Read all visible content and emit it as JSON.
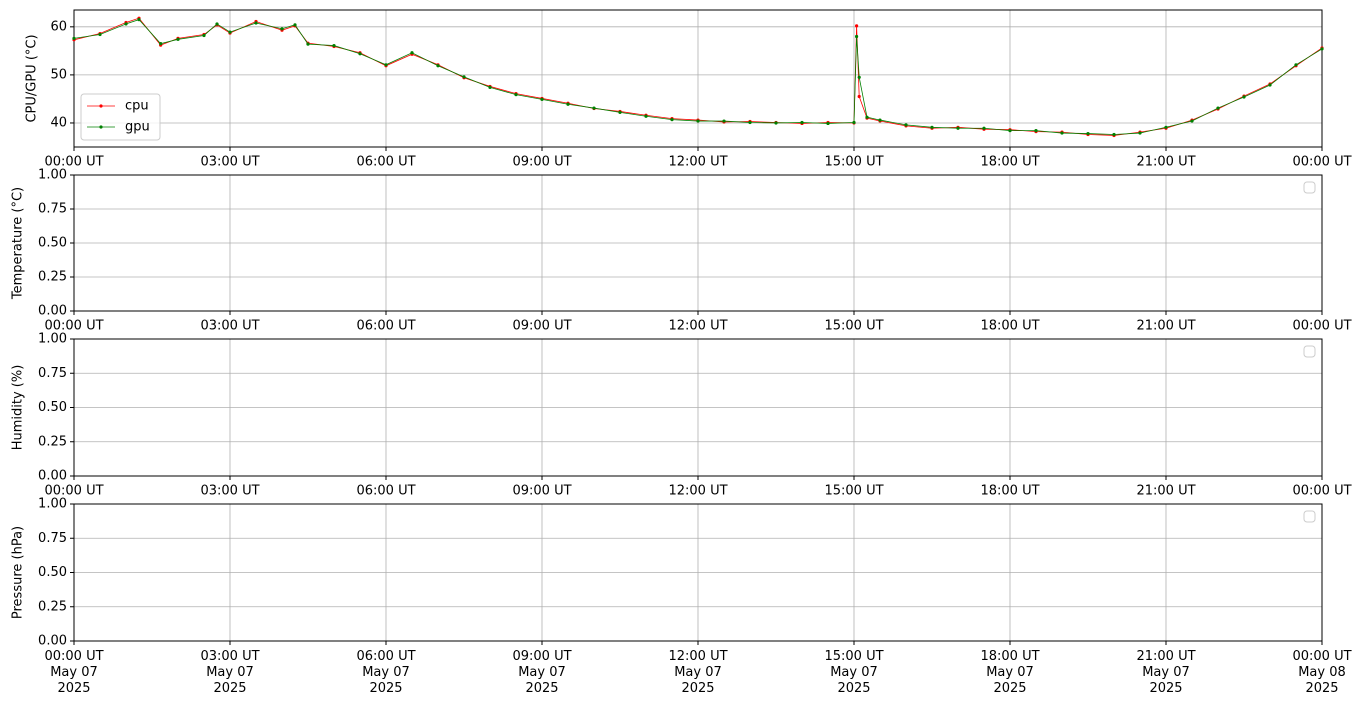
{
  "chart_data": [
    {
      "type": "line",
      "ylabel": "CPU/GPU (°C)",
      "x": [
        "2025-05-07T00:00",
        "2025-05-07T00:30",
        "2025-05-07T01:00",
        "2025-05-07T01:15",
        "2025-05-07T01:40",
        "2025-05-07T02:00",
        "2025-05-07T02:30",
        "2025-05-07T02:45",
        "2025-05-07T03:00",
        "2025-05-07T03:30",
        "2025-05-07T04:00",
        "2025-05-07T04:15",
        "2025-05-07T04:30",
        "2025-05-07T05:00",
        "2025-05-07T05:30",
        "2025-05-07T06:00",
        "2025-05-07T06:30",
        "2025-05-07T07:00",
        "2025-05-07T07:30",
        "2025-05-07T08:00",
        "2025-05-07T08:30",
        "2025-05-07T09:00",
        "2025-05-07T09:30",
        "2025-05-07T10:00",
        "2025-05-07T10:30",
        "2025-05-07T11:00",
        "2025-05-07T11:30",
        "2025-05-07T12:00",
        "2025-05-07T12:30",
        "2025-05-07T13:00",
        "2025-05-07T13:30",
        "2025-05-07T14:00",
        "2025-05-07T14:30",
        "2025-05-07T15:00",
        "2025-05-07T15:03",
        "2025-05-07T15:06",
        "2025-05-07T15:15",
        "2025-05-07T15:30",
        "2025-05-07T16:00",
        "2025-05-07T16:30",
        "2025-05-07T17:00",
        "2025-05-07T17:30",
        "2025-05-07T18:00",
        "2025-05-07T18:30",
        "2025-05-07T19:00",
        "2025-05-07T19:30",
        "2025-05-07T20:00",
        "2025-05-07T20:30",
        "2025-05-07T21:00",
        "2025-05-07T21:30",
        "2025-05-07T22:00",
        "2025-05-07T22:30",
        "2025-05-07T23:00",
        "2025-05-07T23:30",
        "2025-05-08T00:00"
      ],
      "series": [
        {
          "name": "cpu",
          "color": "#ff0000",
          "values": [
            57.3,
            58.6,
            60.9,
            61.8,
            56.2,
            57.6,
            58.4,
            60.4,
            58.7,
            61.1,
            59.3,
            60.2,
            56.6,
            55.9,
            54.6,
            51.9,
            54.3,
            52.1,
            49.4,
            47.6,
            46.1,
            45.1,
            44.1,
            43.0,
            42.4,
            41.6,
            40.9,
            40.6,
            40.2,
            40.3,
            40.1,
            39.9,
            40.1,
            40.0,
            60.2,
            45.5,
            41.0,
            40.4,
            39.4,
            38.9,
            39.1,
            38.7,
            38.6,
            38.2,
            38.1,
            37.6,
            37.4,
            38.1,
            38.9,
            40.6,
            42.9,
            45.6,
            48.1,
            51.9,
            55.6
          ]
        },
        {
          "name": "gpu",
          "color": "#008000",
          "values": [
            57.6,
            58.4,
            60.6,
            61.5,
            56.5,
            57.4,
            58.2,
            60.6,
            58.9,
            60.8,
            59.6,
            60.4,
            56.4,
            56.1,
            54.4,
            52.1,
            54.6,
            51.9,
            49.6,
            47.4,
            45.9,
            44.9,
            43.9,
            43.1,
            42.2,
            41.4,
            40.7,
            40.4,
            40.4,
            40.1,
            40.0,
            40.1,
            39.9,
            40.1,
            58.0,
            49.5,
            41.2,
            40.6,
            39.6,
            39.1,
            38.9,
            38.9,
            38.4,
            38.4,
            37.9,
            37.8,
            37.6,
            37.9,
            39.1,
            40.4,
            43.1,
            45.4,
            47.9,
            52.1,
            55.4
          ]
        }
      ],
      "legend": "lower left",
      "ylim": [
        35,
        63.5
      ],
      "yticks": [
        40,
        50,
        60
      ],
      "xlim": [
        "2025-05-07T00:00",
        "2025-05-08T00:00"
      ],
      "xticks": [
        {
          "value": "2025-05-07T00:00",
          "label": "00:00 UT"
        },
        {
          "value": "2025-05-07T03:00",
          "label": "03:00 UT"
        },
        {
          "value": "2025-05-07T06:00",
          "label": "06:00 UT"
        },
        {
          "value": "2025-05-07T09:00",
          "label": "09:00 UT"
        },
        {
          "value": "2025-05-07T12:00",
          "label": "12:00 UT"
        },
        {
          "value": "2025-05-07T15:00",
          "label": "15:00 UT"
        },
        {
          "value": "2025-05-07T18:00",
          "label": "18:00 UT"
        },
        {
          "value": "2025-05-07T21:00",
          "label": "21:00 UT"
        },
        {
          "value": "2025-05-08T00:00",
          "label": "00:00 UT"
        }
      ],
      "grid": true
    },
    {
      "type": "line",
      "ylabel": "Temperature (°C)",
      "series": [],
      "legend": "upper right",
      "ylim": [
        0,
        1
      ],
      "yticks": [
        {
          "value": 0,
          "label": "0.00"
        },
        {
          "value": 0.25,
          "label": "0.25"
        },
        {
          "value": 0.5,
          "label": "0.50"
        },
        {
          "value": 0.75,
          "label": "0.75"
        },
        {
          "value": 1,
          "label": "1.00"
        }
      ],
      "xlim": [
        "2025-05-07T00:00",
        "2025-05-08T00:00"
      ],
      "xticks": [
        {
          "value": "2025-05-07T00:00",
          "label": "00:00 UT"
        },
        {
          "value": "2025-05-07T03:00",
          "label": "03:00 UT"
        },
        {
          "value": "2025-05-07T06:00",
          "label": "06:00 UT"
        },
        {
          "value": "2025-05-07T09:00",
          "label": "09:00 UT"
        },
        {
          "value": "2025-05-07T12:00",
          "label": "12:00 UT"
        },
        {
          "value": "2025-05-07T15:00",
          "label": "15:00 UT"
        },
        {
          "value": "2025-05-07T18:00",
          "label": "18:00 UT"
        },
        {
          "value": "2025-05-07T21:00",
          "label": "21:00 UT"
        },
        {
          "value": "2025-05-08T00:00",
          "label": "00:00 UT"
        }
      ],
      "grid": true
    },
    {
      "type": "line",
      "ylabel": "Humidity (%)",
      "series": [],
      "legend": "upper right",
      "ylim": [
        0,
        1
      ],
      "yticks": [
        {
          "value": 0,
          "label": "0.00"
        },
        {
          "value": 0.25,
          "label": "0.25"
        },
        {
          "value": 0.5,
          "label": "0.50"
        },
        {
          "value": 0.75,
          "label": "0.75"
        },
        {
          "value": 1,
          "label": "1.00"
        }
      ],
      "xlim": [
        "2025-05-07T00:00",
        "2025-05-08T00:00"
      ],
      "xticks": [
        {
          "value": "2025-05-07T00:00",
          "label": "00:00 UT"
        },
        {
          "value": "2025-05-07T03:00",
          "label": "03:00 UT"
        },
        {
          "value": "2025-05-07T06:00",
          "label": "06:00 UT"
        },
        {
          "value": "2025-05-07T09:00",
          "label": "09:00 UT"
        },
        {
          "value": "2025-05-07T12:00",
          "label": "12:00 UT"
        },
        {
          "value": "2025-05-07T15:00",
          "label": "15:00 UT"
        },
        {
          "value": "2025-05-07T18:00",
          "label": "18:00 UT"
        },
        {
          "value": "2025-05-07T21:00",
          "label": "21:00 UT"
        },
        {
          "value": "2025-05-08T00:00",
          "label": "00:00 UT"
        }
      ],
      "grid": true
    },
    {
      "type": "line",
      "ylabel": "Pressure (hPa)",
      "series": [],
      "legend": "upper right",
      "ylim": [
        0,
        1
      ],
      "yticks": [
        {
          "value": 0,
          "label": "0.00"
        },
        {
          "value": 0.25,
          "label": "0.25"
        },
        {
          "value": 0.5,
          "label": "0.50"
        },
        {
          "value": 0.75,
          "label": "0.75"
        },
        {
          "value": 1,
          "label": "1.00"
        }
      ],
      "xlim": [
        "2025-05-07T00:00",
        "2025-05-08T00:00"
      ],
      "xticks": [
        {
          "value": "2025-05-07T00:00",
          "label": "00:00 UT\nMay 07\n2025"
        },
        {
          "value": "2025-05-07T03:00",
          "label": "03:00 UT\nMay 07\n2025"
        },
        {
          "value": "2025-05-07T06:00",
          "label": "06:00 UT\nMay 07\n2025"
        },
        {
          "value": "2025-05-07T09:00",
          "label": "09:00 UT\nMay 07\n2025"
        },
        {
          "value": "2025-05-07T12:00",
          "label": "12:00 UT\nMay 07\n2025"
        },
        {
          "value": "2025-05-07T15:00",
          "label": "15:00 UT\nMay 07\n2025"
        },
        {
          "value": "2025-05-07T18:00",
          "label": "18:00 UT\nMay 07\n2025"
        },
        {
          "value": "2025-05-07T21:00",
          "label": "21:00 UT\nMay 07\n2025"
        },
        {
          "value": "2025-05-08T00:00",
          "label": "00:00 UT\nMay 08\n2025"
        }
      ],
      "grid": true
    }
  ]
}
